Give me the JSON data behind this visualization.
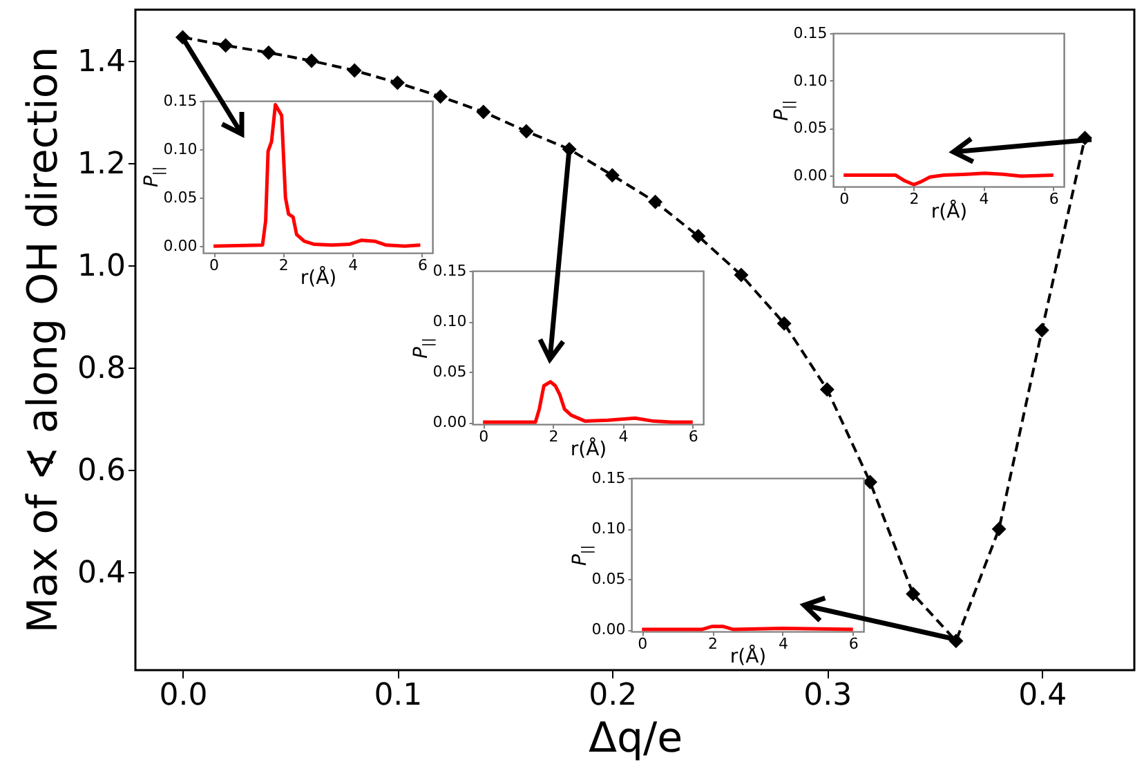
{
  "chart_data": [
    {
      "type": "line",
      "xlabel": "Δq/e",
      "ylabel": "Max of ∢ along OH direction",
      "marker": "diamond",
      "line_style": "dashed",
      "x": [
        0,
        0.02,
        0.04,
        0.06,
        0.08,
        0.1,
        0.12,
        0.14,
        0.16,
        0.18,
        0.2,
        0.22,
        0.24,
        0.26,
        0.28,
        0.3,
        0.32,
        0.34,
        0.36,
        0.38,
        0.4,
        0.42
      ],
      "series": [
        {
          "color": "#000000",
          "values": [
            1.446,
            1.43,
            1.416,
            1.4,
            1.381,
            1.357,
            1.33,
            1.3,
            1.262,
            1.227,
            1.176,
            1.124,
            1.057,
            0.981,
            0.886,
            0.757,
            0.576,
            0.357,
            0.265,
            0.484,
            0.873,
            1.249
          ]
        }
      ],
      "xlim": [
        -0.022,
        0.443
      ],
      "ylim": [
        0.208,
        1.5
      ],
      "xticks": [
        {
          "value": 0,
          "label": "0.0"
        },
        0.1,
        0.2,
        0.3,
        0.4
      ],
      "yticks": [
        0.4,
        0.6,
        0.8,
        {
          "value": 1,
          "label": "1.0"
        },
        1.2,
        1.4
      ]
    },
    {
      "type": "line",
      "xlabel": "r(Å)",
      "ylabel": "P$_{||}$",
      "line_style": "solid",
      "x": [
        0,
        1.41,
        1.5,
        1.57,
        1.67,
        1.78,
        1.86,
        1.96,
        2.07,
        2.16,
        2.29,
        2.39,
        2.61,
        2.88,
        3.4,
        3.92,
        4.25,
        4.64,
        4.97,
        5.5,
        5.95
      ],
      "series": [
        {
          "color": "#ff0000",
          "values": [
            0,
            0.001,
            0.026,
            0.098,
            0.108,
            0.146,
            0.141,
            0.135,
            0.05,
            0.033,
            0.03,
            0.012,
            0.005,
            0.002,
            0.001,
            0.002,
            0.006,
            0.005,
            0.001,
            0,
            0.001
          ]
        }
      ],
      "xlim": [
        -0.3,
        6.3
      ],
      "ylim": [
        -0.007,
        0.15
      ],
      "xticks": [
        0,
        2,
        4,
        6
      ],
      "yticks": [
        {
          "value": 0,
          "label": "0.00"
        },
        {
          "value": 0.05,
          "label": "0.05"
        },
        {
          "value": 0.1,
          "label": "0.10"
        },
        {
          "value": 0.15,
          "label": "0.15"
        }
      ]
    },
    {
      "type": "line",
      "xlabel": "r(Å)",
      "ylabel": "P$_{||}$",
      "line_style": "solid",
      "x": [
        0,
        1.5,
        1.61,
        1.74,
        1.93,
        2.07,
        2.2,
        2.33,
        2.52,
        2.92,
        3.57,
        4.35,
        4.88,
        5.4,
        6
      ],
      "series": [
        {
          "color": "#ff0000",
          "values": [
            0,
            0,
            0.013,
            0.036,
            0.04,
            0.036,
            0.027,
            0.013,
            0.007,
            0.001,
            0.002,
            0.004,
            0.001,
            0,
            0
          ]
        }
      ],
      "xlim": [
        -0.3,
        6.3
      ],
      "ylim": [
        -0.002,
        0.15
      ],
      "xticks": [
        0,
        2,
        4,
        6
      ],
      "yticks": [
        {
          "value": 0,
          "label": "0.00"
        },
        {
          "value": 0.05,
          "label": "0.05"
        },
        {
          "value": 0.1,
          "label": "0.10"
        },
        {
          "value": 0.15,
          "label": "0.15"
        }
      ]
    },
    {
      "type": "line",
      "xlabel": "r(Å)",
      "ylabel": "P$_{||}$",
      "line_style": "solid",
      "x": [
        0,
        1.49,
        1.75,
        2.01,
        2.21,
        2.47,
        2.86,
        3.52,
        4.04,
        4.56,
        5.08,
        6
      ],
      "series": [
        {
          "color": "#ff0000",
          "values": [
            0,
            0,
            -0.006,
            -0.01,
            -0.007,
            -0.002,
            0,
            0.001,
            0.002,
            0.001,
            -0.001,
            0
          ]
        }
      ],
      "xlim": [
        -0.3,
        6.3
      ],
      "ylim": [
        -0.012,
        0.15
      ],
      "xticks": [
        0,
        2,
        4,
        6
      ],
      "yticks": [
        {
          "value": 0,
          "label": "0.00"
        },
        {
          "value": 0.05,
          "label": "0.05"
        },
        {
          "value": 0.1,
          "label": "0.10"
        },
        {
          "value": 0.15,
          "label": "0.15"
        }
      ]
    },
    {
      "type": "line",
      "xlabel": "r(Å)",
      "ylabel": "P$_{||}$",
      "line_style": "solid",
      "x": [
        0,
        1.7,
        2,
        2.3,
        2.6,
        4,
        6
      ],
      "series": [
        {
          "color": "#ff0000",
          "values": [
            0,
            0,
            0.003,
            0.003,
            0,
            0.001,
            0
          ]
        }
      ],
      "xlim": [
        -0.3,
        6.3
      ],
      "ylim": [
        -0.002,
        0.15
      ],
      "xticks": [
        0,
        2,
        4,
        6
      ],
      "yticks": [
        {
          "value": 0,
          "label": "0.00"
        },
        {
          "value": 0.05,
          "label": "0.05"
        },
        {
          "value": 0.1,
          "label": "0.10"
        },
        {
          "value": 0.15,
          "label": "0.15"
        }
      ]
    }
  ]
}
